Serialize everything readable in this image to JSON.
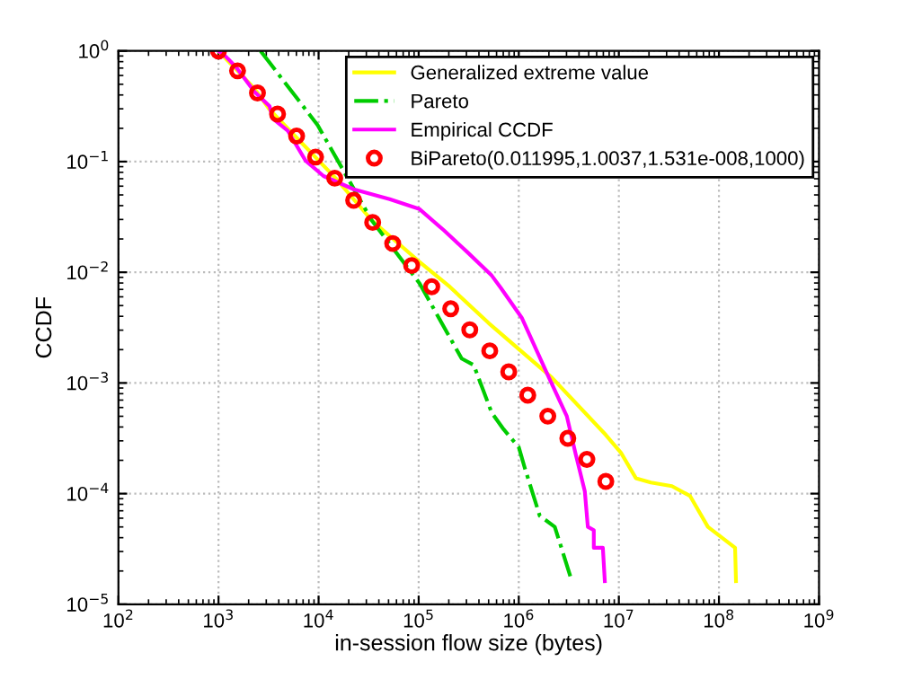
{
  "chart_data": {
    "type": "line",
    "xlabel": "in-session flow size (bytes)",
    "ylabel": "CCDF",
    "log": "xy",
    "grid": true,
    "legend": "top right",
    "xlim": [
      100,
      1000000000
    ],
    "ylim": [
      1e-05,
      1
    ],
    "xticks": [
      {
        "value": 100,
        "label": "10$^{2}$"
      },
      {
        "value": 1000,
        "label": "10$^{3}$"
      },
      {
        "value": 10000,
        "label": "10$^{4}$"
      },
      {
        "value": 100000,
        "label": "10$^{5}$"
      },
      {
        "value": 1000000,
        "label": "10$^{6}$"
      },
      {
        "value": 10000000,
        "label": "10$^{7}$"
      },
      {
        "value": 100000000,
        "label": "10$^{8}$"
      },
      {
        "value": 1000000000,
        "label": "10$^{9}$"
      }
    ],
    "yticks": [
      {
        "value": 1e-05,
        "label": "10$^{−5}$"
      },
      {
        "value": 0.0001,
        "label": "10$^{−4}$"
      },
      {
        "value": 0.001,
        "label": "10$^{−3}$"
      },
      {
        "value": 0.01,
        "label": "10$^{−2}$"
      },
      {
        "value": 0.1,
        "label": "10$^{−1}$"
      },
      {
        "value": 1,
        "label": "10$^{0}$"
      }
    ],
    "series": [
      {
        "name": "Generalized extreme value",
        "line_style": "solid",
        "marker": "none",
        "color": "#ffff00",
        "x": [
          1000,
          2290,
          3240,
          14800,
          33900,
          100000,
          204000,
          501000,
          2140000,
          7410000,
          10500000,
          14800000,
          20900000,
          33900000,
          51300000,
          77600000,
          145000000,
          148000000
        ],
        "values": [
          1,
          0.457,
          0.295,
          0.0708,
          0.0295,
          0.0126,
          0.00741,
          0.00347,
          0.00112,
          0.000339,
          0.000234,
          0.000138,
          0.000126,
          0.000117,
          9.55e-05,
          5.01e-05,
          3.24e-05,
          1.62e-05
        ]
      },
      {
        "name": "Pareto",
        "line_style": "dashdot",
        "marker": "none",
        "color": "#00cc00",
        "x": [
          2630,
          9770,
          33900,
          102000,
          269000,
          355000,
          537000,
          708000,
          1000000,
          1150000,
          1620000,
          2290000,
          3310000
        ],
        "values": [
          1,
          0.214,
          0.0295,
          0.00794,
          0.00166,
          0.00145,
          0.000537,
          0.00038,
          0.000263,
          0.00017,
          6.31e-05,
          5.01e-05,
          1.74e-05
        ]
      },
      {
        "name": "Empirical CCDF",
        "line_style": "solid",
        "marker": "none",
        "color": "#ff00ff",
        "x": [
          1000,
          1150,
          1510,
          2290,
          3240,
          3470,
          4900,
          7410,
          11200,
          22400,
          51300,
          102000,
          178000,
          309000,
          537000,
          661000,
          1070000,
          2000000,
          3020000,
          3720000,
          4570000,
          4900000,
          5620000,
          5620000,
          6920000,
          7240000
        ],
        "values": [
          1,
          0.912,
          0.708,
          0.427,
          0.316,
          0.245,
          0.191,
          0.102,
          0.0741,
          0.0562,
          0.0457,
          0.0372,
          0.024,
          0.0151,
          0.00933,
          0.00724,
          0.00389,
          0.00112,
          0.000501,
          0.000224,
          0.000105,
          5.01e-05,
          4.68e-05,
          3.24e-05,
          3.24e-05,
          1.62e-05
        ]
      },
      {
        "name": "BiPareto(0.011995,1.0037,1.531e-008,1000)",
        "type": "scatter",
        "marker": "circle",
        "color": "#ff0000",
        "x": [
          1000,
          1550,
          2450,
          3890,
          6030,
          9330,
          14500,
          22400,
          34700,
          55000,
          85100,
          135000,
          209000,
          324000,
          513000,
          794000,
          1230000,
          1950000,
          3090000,
          4790000,
          7410000
        ],
        "values": [
          1,
          0.661,
          0.417,
          0.269,
          0.17,
          0.11,
          0.0708,
          0.0447,
          0.0282,
          0.0182,
          0.0115,
          0.00741,
          0.00468,
          0.00302,
          0.00195,
          0.00126,
          0.000776,
          0.000501,
          0.000316,
          0.000204,
          0.000129
        ]
      }
    ]
  }
}
